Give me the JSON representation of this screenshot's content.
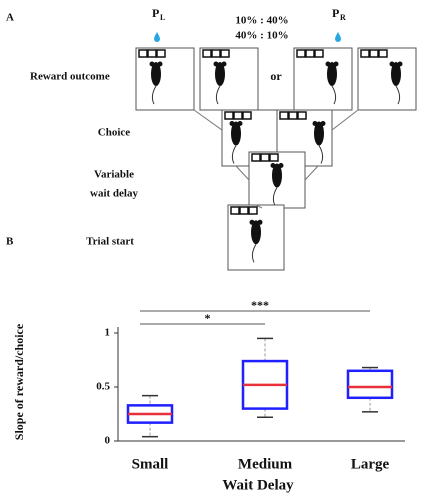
{
  "panel_a": {
    "label": "A",
    "ports": {
      "left": "P",
      "left_sub": "L",
      "right": "P",
      "right_sub": "R"
    },
    "probabilities": [
      "10% : 40%",
      "40% : 10%"
    ],
    "stages": {
      "reward_outcome": "Reward outcome",
      "or": "or",
      "choice": "Choice",
      "wait_delay": [
        "Variable",
        "wait delay"
      ],
      "trial_start": "Trial start"
    }
  },
  "chart_data": {
    "type": "box",
    "panel_label": "B",
    "y_label": "Slope of reward/choice",
    "x_label": "Wait Delay",
    "categories": [
      "Small",
      "Medium",
      "Large"
    ],
    "boxes": [
      {
        "low": 0.04,
        "q1": 0.17,
        "median": 0.25,
        "q3": 0.33,
        "high": 0.42
      },
      {
        "low": 0.22,
        "q1": 0.3,
        "median": 0.52,
        "q3": 0.74,
        "high": 0.95
      },
      {
        "low": 0.27,
        "q1": 0.4,
        "median": 0.5,
        "q3": 0.65,
        "high": 0.68
      }
    ],
    "color": "#1f1fff",
    "median_color": "#e8303a",
    "ylim": [
      0,
      1
    ],
    "yticks": [
      0,
      0.5,
      1
    ],
    "significance": [
      "*",
      "***"
    ]
  }
}
